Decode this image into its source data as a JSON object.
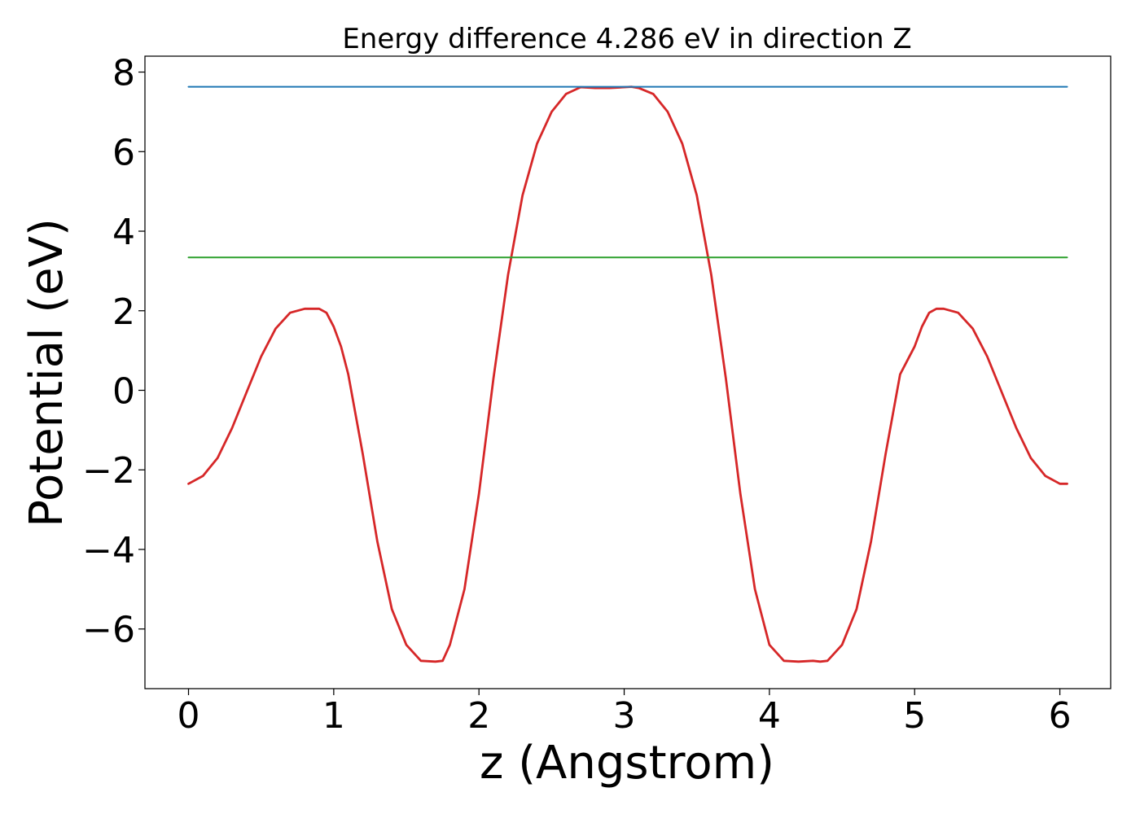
{
  "chart_data": {
    "type": "line",
    "title": "Energy difference 4.286 eV in direction Z",
    "xlabel": "z (Angstrom)",
    "ylabel": "Potential (eV)",
    "xlim": [
      -0.3,
      6.35
    ],
    "ylim": [
      -7.5,
      8.4
    ],
    "x_ticks": [
      0,
      1,
      2,
      3,
      4,
      5,
      6
    ],
    "y_ticks": [
      -6,
      -4,
      -2,
      0,
      2,
      4,
      6,
      8
    ],
    "x_tick_labels": [
      "0",
      "1",
      "2",
      "3",
      "4",
      "5",
      "6"
    ],
    "y_tick_labels": [
      "−6",
      "−4",
      "−2",
      "0",
      "2",
      "4",
      "6",
      "8"
    ],
    "grid": false,
    "legend": "none",
    "series": [
      {
        "color": "#d62728",
        "x": [
          0.0,
          0.1,
          0.2,
          0.3,
          0.4,
          0.5,
          0.6,
          0.7,
          0.8,
          0.9,
          0.95,
          1.0,
          1.05,
          1.1,
          1.2,
          1.3,
          1.4,
          1.5,
          1.6,
          1.7,
          1.75,
          1.8,
          1.9,
          2.0,
          2.1,
          2.2,
          2.3,
          2.4,
          2.5,
          2.6,
          2.7,
          2.8,
          2.9,
          3.0,
          3.05,
          3.1,
          3.2,
          3.3,
          3.4,
          3.5,
          3.6,
          3.7,
          3.8,
          3.9,
          4.0,
          4.1,
          4.2,
          4.3,
          4.35,
          4.4,
          4.5,
          4.6,
          4.7,
          4.8,
          4.9,
          5.0,
          5.05,
          5.1,
          5.15,
          5.2,
          5.3,
          5.4,
          5.5,
          5.6,
          5.7,
          5.8,
          5.9,
          6.0,
          6.05
        ],
        "y": [
          -2.35,
          -2.15,
          -1.7,
          -0.95,
          -0.05,
          0.85,
          1.55,
          1.95,
          2.05,
          2.05,
          1.95,
          1.6,
          1.1,
          0.4,
          -1.6,
          -3.8,
          -5.5,
          -6.4,
          -6.8,
          -6.82,
          -6.8,
          -6.4,
          -5.0,
          -2.6,
          0.3,
          2.9,
          4.9,
          6.2,
          7.0,
          7.45,
          7.62,
          7.6,
          7.6,
          7.62,
          7.63,
          7.6,
          7.45,
          7.0,
          6.2,
          4.9,
          2.9,
          0.3,
          -2.6,
          -5.0,
          -6.4,
          -6.8,
          -6.82,
          -6.8,
          -6.82,
          -6.8,
          -6.4,
          -5.5,
          -3.8,
          -1.6,
          0.4,
          1.1,
          1.6,
          1.95,
          2.05,
          2.05,
          1.95,
          1.55,
          0.85,
          -0.05,
          -0.95,
          -1.7,
          -2.15,
          -2.35,
          -2.35
        ]
      },
      {
        "color": "#1f77b4",
        "x": [
          0.0,
          6.05
        ],
        "y": [
          7.63,
          7.63
        ]
      },
      {
        "color": "#2ca02c",
        "x": [
          0.0,
          6.05
        ],
        "y": [
          3.34,
          3.34
        ]
      }
    ]
  }
}
